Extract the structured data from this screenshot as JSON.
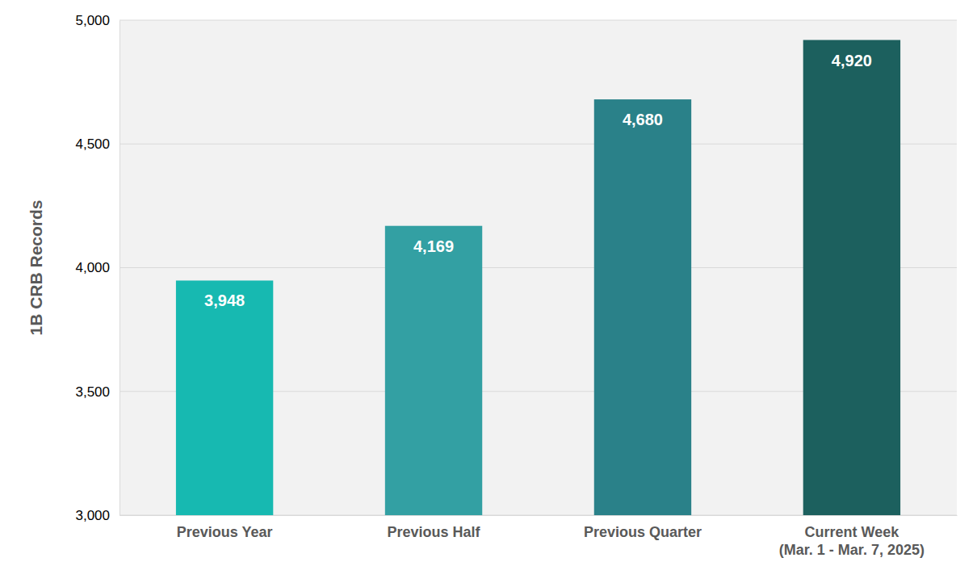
{
  "chart_data": {
    "type": "bar",
    "y_label": "1B CRB Records",
    "categories": [
      "Previous Year",
      "Previous Half",
      "Previous Quarter",
      "Current Week\n(Mar. 1 - Mar. 7, 2025)"
    ],
    "values": [
      3948,
      4169,
      4680,
      4920
    ],
    "value_labels": [
      "3,948",
      "4,169",
      "4,680",
      "4,920"
    ],
    "colors": [
      "#17b9b1",
      "#33a0a3",
      "#2a8189",
      "#1c605e"
    ],
    "ylim": [
      3000,
      5000
    ],
    "yticks": [
      {
        "value": 3000,
        "label": "3,000"
      },
      {
        "value": 3500,
        "label": "3,500"
      },
      {
        "value": 4000,
        "label": "4,000"
      },
      {
        "value": 4500,
        "label": "4,500"
      },
      {
        "value": 5000,
        "label": "5,000"
      }
    ],
    "grid": true,
    "data_labels": true
  }
}
